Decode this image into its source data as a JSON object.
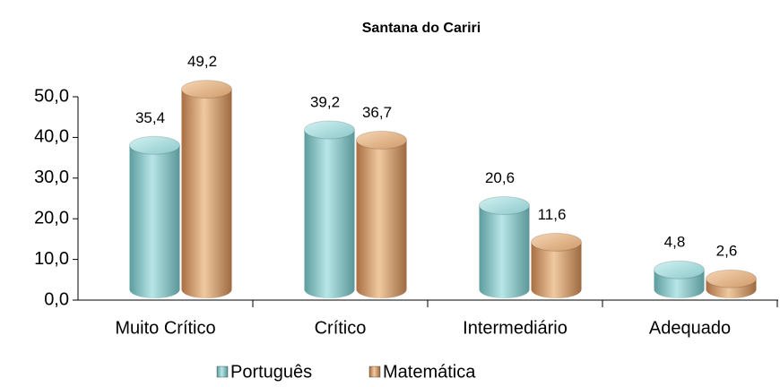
{
  "chart_data": {
    "type": "bar3d",
    "title": "Santana do Cariri",
    "categories": [
      "Muito Crítico",
      "Crítico",
      "Intermediário",
      "Adequado"
    ],
    "series": [
      {
        "name": "Português",
        "color": "#7fc4c6",
        "values": [
          35.4,
          39.2,
          20.6,
          4.8
        ],
        "value_labels": [
          "35,4",
          "39,2",
          "20,6",
          "4,8"
        ]
      },
      {
        "name": "Matemática",
        "color": "#d9a070",
        "values": [
          49.2,
          36.7,
          11.6,
          2.6
        ],
        "value_labels": [
          "49,2",
          "36,7",
          "11,6",
          "2,6"
        ]
      }
    ],
    "ylim": [
      0,
      50
    ],
    "yticks": [
      {
        "value": 0,
        "label": "0,0"
      },
      {
        "value": 10,
        "label": "10,0"
      },
      {
        "value": 20,
        "label": "20,0"
      },
      {
        "value": 30,
        "label": "30,0"
      },
      {
        "value": 40,
        "label": "40,0"
      },
      {
        "value": 50,
        "label": "50,0"
      }
    ],
    "legend": "bottom"
  }
}
